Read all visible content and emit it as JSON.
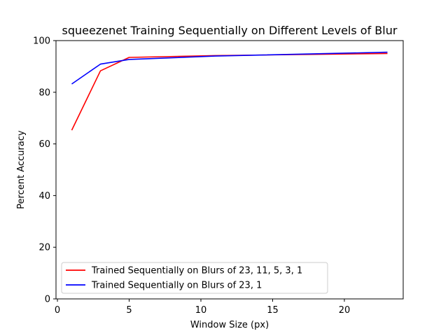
{
  "chart_data": {
    "type": "line",
    "title": "squeezenet Training Sequentially on Different Levels of Blur",
    "xlabel": "Window Size (px)",
    "ylabel": "Percent Accuracy",
    "xlim": [
      -0.1,
      24.1
    ],
    "ylim": [
      0,
      100
    ],
    "xticks": [
      0,
      5,
      10,
      15,
      20
    ],
    "yticks": [
      0,
      20,
      40,
      60,
      80,
      100
    ],
    "grid": false,
    "legend_position": "lower-left",
    "series": [
      {
        "name": "Trained Sequentially on Blurs of 23, 11, 5, 3, 1",
        "color": "#ff0000",
        "x": [
          1,
          3,
          5,
          11,
          23
        ],
        "y": [
          65.3,
          88.3,
          93.5,
          94.2,
          95.0
        ]
      },
      {
        "name": "Trained Sequentially on Blurs of 23, 1",
        "color": "#0000ff",
        "x": [
          1,
          3,
          5,
          11,
          23
        ],
        "y": [
          83.2,
          90.9,
          92.7,
          94.0,
          95.5
        ]
      }
    ]
  }
}
